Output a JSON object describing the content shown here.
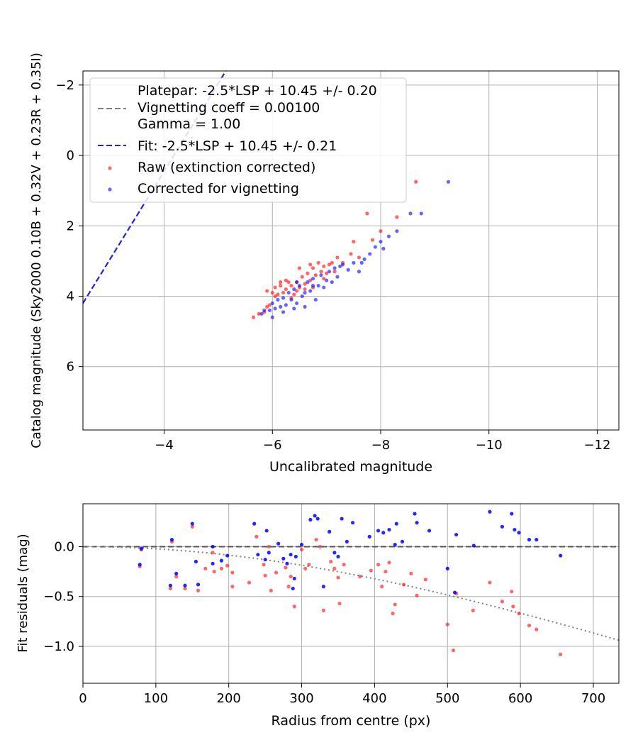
{
  "chart_data": [
    {
      "type": "scatter",
      "xlabel": "Uncalibrated magnitude",
      "ylabel": "Catalog magnitude (Sky2000 0.10B + 0.32V + 0.23R + 0.35I)",
      "xlim": [
        -2.5,
        -12.4
      ],
      "ylim": [
        7.8,
        -2.4
      ],
      "x_inverted": true,
      "y_inverted": true,
      "xticks": [
        -4,
        -6,
        -8,
        -10,
        -12
      ],
      "xtick_labels": [
        "−4",
        "−6",
        "−8",
        "−10",
        "−12"
      ],
      "yticks": [
        -2,
        0,
        2,
        4,
        6
      ],
      "ytick_labels": [
        "−2",
        "0",
        "2",
        "4",
        "6"
      ],
      "grid": true,
      "legend_position": "top-left",
      "legend": [
        {
          "kind": "dashed-line",
          "color": "#808080",
          "lines": [
            "Platepar: -2.5*LSP + 10.45 +/- 0.20",
            "Vignetting coeff = 0.00100",
            "Gamma = 1.00"
          ]
        },
        {
          "kind": "dashed-line",
          "color": "#2222dd",
          "lines": [
            "Fit: -2.5*LSP + 10.45 +/- 0.21"
          ]
        },
        {
          "kind": "marker",
          "color": "#ff0000",
          "lines": [
            "Raw (extinction corrected)"
          ]
        },
        {
          "kind": "marker",
          "color": "#0000ff",
          "lines": [
            "Corrected for vignetting"
          ]
        }
      ],
      "fit_line": {
        "slope": 2.5,
        "intercept": 10.45,
        "color": "#2222dd"
      },
      "series": [
        {
          "name": "Raw (extinction corrected)",
          "color": "#ff0000",
          "points": [
            [
              -5.65,
              4.6
            ],
            [
              -5.75,
              4.5
            ],
            [
              -5.85,
              4.45
            ],
            [
              -5.9,
              4.3
            ],
            [
              -5.95,
              4.25
            ],
            [
              -5.9,
              3.85
            ],
            [
              -6.0,
              3.9
            ],
            [
              -6.05,
              3.75
            ],
            [
              -6.1,
              3.95
            ],
            [
              -6.15,
              3.7
            ],
            [
              -6.2,
              3.9
            ],
            [
              -6.25,
              3.8
            ],
            [
              -6.3,
              3.6
            ],
            [
              -6.35,
              3.7
            ],
            [
              -6.4,
              3.95
            ],
            [
              -6.45,
              3.6
            ],
            [
              -6.5,
              3.75
            ],
            [
              -6.55,
              3.45
            ],
            [
              -6.6,
              3.65
            ],
            [
              -6.65,
              3.35
            ],
            [
              -6.7,
              3.55
            ],
            [
              -6.75,
              3.2
            ],
            [
              -6.8,
              3.4
            ],
            [
              -6.85,
              3.05
            ],
            [
              -6.9,
              3.3
            ],
            [
              -6.95,
              3.15
            ],
            [
              -7.0,
              3.35
            ],
            [
              -7.05,
              3.1
            ],
            [
              -7.1,
              3.05
            ],
            [
              -7.15,
              3.3
            ],
            [
              -7.2,
              2.9
            ],
            [
              -7.3,
              3.05
            ],
            [
              -7.45,
              2.8
            ],
            [
              -7.5,
              2.45
            ],
            [
              -7.6,
              2.9
            ],
            [
              -7.75,
              1.65
            ],
            [
              -7.85,
              2.4
            ],
            [
              -8.0,
              2.15
            ],
            [
              -8.3,
              1.75
            ],
            [
              -8.65,
              0.75
            ],
            [
              -6.05,
              4.0
            ],
            [
              -6.25,
              3.55
            ],
            [
              -6.45,
              3.85
            ],
            [
              -6.6,
              3.8
            ],
            [
              -6.75,
              3.75
            ],
            [
              -6.5,
              3.2
            ],
            [
              -6.35,
              4.05
            ],
            [
              -6.15,
              3.6
            ],
            [
              -6.95,
              3.5
            ],
            [
              -6.7,
              3.1
            ]
          ]
        },
        {
          "name": "Corrected for vignetting",
          "color": "#0000ff",
          "points": [
            [
              -5.8,
              4.5
            ],
            [
              -5.85,
              4.4
            ],
            [
              -5.95,
              4.4
            ],
            [
              -6.0,
              4.2
            ],
            [
              -6.05,
              4.35
            ],
            [
              -6.1,
              4.1
            ],
            [
              -6.15,
              4.3
            ],
            [
              -6.2,
              4.05
            ],
            [
              -6.25,
              4.25
            ],
            [
              -6.3,
              3.9
            ],
            [
              -6.35,
              4.1
            ],
            [
              -6.4,
              3.8
            ],
            [
              -6.45,
              4.2
            ],
            [
              -6.5,
              3.7
            ],
            [
              -6.55,
              4.0
            ],
            [
              -6.6,
              3.9
            ],
            [
              -6.65,
              3.6
            ],
            [
              -6.7,
              3.85
            ],
            [
              -6.75,
              3.5
            ],
            [
              -6.8,
              4.1
            ],
            [
              -6.85,
              3.7
            ],
            [
              -6.9,
              3.4
            ],
            [
              -6.95,
              3.75
            ],
            [
              -7.0,
              3.55
            ],
            [
              -7.05,
              3.3
            ],
            [
              -7.1,
              3.6
            ],
            [
              -7.15,
              3.2
            ],
            [
              -7.2,
              3.45
            ],
            [
              -7.3,
              3.1
            ],
            [
              -7.4,
              3.25
            ],
            [
              -7.5,
              3.05
            ],
            [
              -7.6,
              3.3
            ],
            [
              -7.7,
              2.95
            ],
            [
              -7.8,
              2.8
            ],
            [
              -7.9,
              2.6
            ],
            [
              -8.0,
              2.45
            ],
            [
              -8.15,
              2.3
            ],
            [
              -8.3,
              2.15
            ],
            [
              -8.55,
              1.65
            ],
            [
              -8.75,
              1.65
            ],
            [
              -9.25,
              0.75
            ],
            [
              -6.2,
              4.45
            ],
            [
              -6.4,
              4.35
            ],
            [
              -6.6,
              4.3
            ],
            [
              -6.45,
              3.6
            ],
            [
              -6.75,
              3.7
            ],
            [
              -7.25,
              3.15
            ],
            [
              -7.65,
              3.05
            ],
            [
              -8.05,
              2.65
            ],
            [
              -6.0,
              4.6
            ]
          ]
        }
      ]
    },
    {
      "type": "scatter",
      "xlabel": "Radius from centre (px)",
      "ylabel": "Fit residuals (mag)",
      "xlim": [
        0,
        735
      ],
      "ylim": [
        -1.37,
        0.43
      ],
      "xticks": [
        0,
        100,
        200,
        300,
        400,
        500,
        600,
        700
      ],
      "xtick_labels": [
        "0",
        "100",
        "200",
        "300",
        "400",
        "500",
        "600",
        "700"
      ],
      "yticks": [
        0.0,
        -0.5,
        -1.0
      ],
      "ytick_labels": [
        "0.0",
        "−0.5",
        "−1.0"
      ],
      "grid": true,
      "zero_line": {
        "y": 0,
        "color": "#555555"
      },
      "vignetting_curve": {
        "coeff": 0.001,
        "color": "#808080"
      },
      "series": [
        {
          "name": "Raw (extinction corrected)",
          "color": "#ff0000",
          "points": [
            [
              78,
              -0.2
            ],
            [
              80,
              -0.03
            ],
            [
              120,
              -0.42
            ],
            [
              122,
              0.05
            ],
            [
              128,
              -0.3
            ],
            [
              140,
              -0.42
            ],
            [
              150,
              0.2
            ],
            [
              158,
              -0.44
            ],
            [
              168,
              -0.22
            ],
            [
              178,
              -0.06
            ],
            [
              180,
              -0.25
            ],
            [
              190,
              -0.22
            ],
            [
              198,
              -0.19
            ],
            [
              205,
              -0.4
            ],
            [
              205,
              -0.26
            ],
            [
              228,
              -0.36
            ],
            [
              238,
              0.1
            ],
            [
              248,
              -0.18
            ],
            [
              250,
              -0.29
            ],
            [
              255,
              0.0
            ],
            [
              258,
              -0.44
            ],
            [
              265,
              -0.26
            ],
            [
              278,
              -0.21
            ],
            [
              282,
              -0.4
            ],
            [
              285,
              -0.3
            ],
            [
              290,
              -0.6
            ],
            [
              300,
              -0.03
            ],
            [
              305,
              -0.22
            ],
            [
              310,
              -0.18
            ],
            [
              320,
              0.07
            ],
            [
              325,
              0.0
            ],
            [
              330,
              -0.64
            ],
            [
              340,
              -0.15
            ],
            [
              345,
              -0.22
            ],
            [
              350,
              -0.31
            ],
            [
              352,
              -0.57
            ],
            [
              358,
              -0.18
            ],
            [
              380,
              -0.3
            ],
            [
              395,
              -0.24
            ],
            [
              405,
              -0.18
            ],
            [
              410,
              -0.4
            ],
            [
              415,
              -0.25
            ],
            [
              420,
              -0.16
            ],
            [
              425,
              -0.67
            ],
            [
              428,
              -0.58
            ],
            [
              440,
              -0.38
            ],
            [
              450,
              -0.27
            ],
            [
              458,
              -0.49
            ],
            [
              470,
              -0.33
            ],
            [
              500,
              -0.78
            ],
            [
              508,
              -1.04
            ],
            [
              512,
              -0.47
            ],
            [
              535,
              -0.64
            ],
            [
              558,
              -0.36
            ],
            [
              575,
              -0.55
            ],
            [
              588,
              -0.45
            ],
            [
              590,
              -0.6
            ],
            [
              598,
              -0.67
            ],
            [
              612,
              -0.79
            ],
            [
              622,
              -0.83
            ],
            [
              655,
              -1.08
            ]
          ]
        },
        {
          "name": "Corrected for vignetting",
          "color": "#0000ff",
          "points": [
            [
              78,
              -0.18
            ],
            [
              80,
              -0.02
            ],
            [
              120,
              -0.39
            ],
            [
              122,
              0.07
            ],
            [
              128,
              -0.27
            ],
            [
              140,
              -0.39
            ],
            [
              150,
              0.23
            ],
            [
              155,
              -0.15
            ],
            [
              158,
              -0.38
            ],
            [
              178,
              -0.17
            ],
            [
              178,
              0.0
            ],
            [
              190,
              -0.14
            ],
            [
              198,
              -0.09
            ],
            [
              235,
              0.23
            ],
            [
              240,
              -0.08
            ],
            [
              250,
              -0.13
            ],
            [
              252,
              0.16
            ],
            [
              255,
              -0.06
            ],
            [
              268,
              0.03
            ],
            [
              275,
              -0.12
            ],
            [
              280,
              -0.17
            ],
            [
              285,
              -0.08
            ],
            [
              288,
              -0.42
            ],
            [
              290,
              -0.32
            ],
            [
              292,
              -0.1
            ],
            [
              300,
              0.02
            ],
            [
              312,
              0.27
            ],
            [
              318,
              0.31
            ],
            [
              322,
              0.28
            ],
            [
              330,
              -0.4
            ],
            [
              338,
              0.15
            ],
            [
              345,
              -0.06
            ],
            [
              350,
              -0.1
            ],
            [
              355,
              0.28
            ],
            [
              362,
              0.05
            ],
            [
              370,
              0.24
            ],
            [
              393,
              0.1
            ],
            [
              405,
              0.16
            ],
            [
              412,
              0.14
            ],
            [
              420,
              0.17
            ],
            [
              428,
              0.02
            ],
            [
              430,
              0.23
            ],
            [
              438,
              0.05
            ],
            [
              455,
              0.33
            ],
            [
              458,
              0.24
            ],
            [
              475,
              0.16
            ],
            [
              500,
              -0.22
            ],
            [
              510,
              -0.46
            ],
            [
              512,
              0.12
            ],
            [
              536,
              0.01
            ],
            [
              558,
              0.35
            ],
            [
              575,
              0.2
            ],
            [
              588,
              0.33
            ],
            [
              592,
              0.17
            ],
            [
              598,
              0.14
            ],
            [
              612,
              0.07
            ],
            [
              622,
              0.07
            ],
            [
              655,
              -0.09
            ]
          ]
        }
      ]
    }
  ]
}
